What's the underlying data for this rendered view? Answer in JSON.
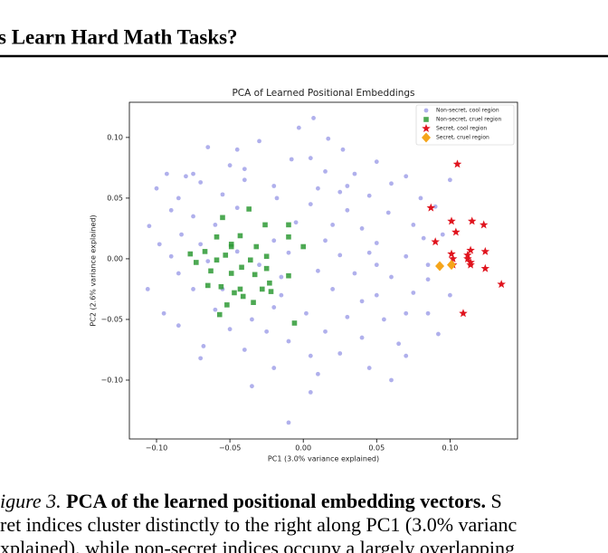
{
  "header": {
    "title": "s Learn Hard Math Tasks?"
  },
  "chart_data": {
    "type": "scatter",
    "title": "PCA of Learned Positional Embeddings",
    "x_label": "PC1 (3.0% variance explained)",
    "y_label": "PC2 (2.6% variance explained)",
    "xlim": [
      -0.1185,
      0.146
    ],
    "ylim": [
      -0.1485,
      0.129
    ],
    "xticks": [
      {
        "value": -0.1,
        "label": "−0.10"
      },
      {
        "value": -0.05,
        "label": "−0.05"
      },
      {
        "value": 0,
        "label": "0.00"
      },
      {
        "value": 0.05,
        "label": "0.05"
      },
      {
        "value": 0.1,
        "label": "0.10"
      }
    ],
    "yticks": [
      {
        "value": -0.1,
        "label": "−0.10"
      },
      {
        "value": -0.05,
        "label": "−0.05"
      },
      {
        "value": 0,
        "label": "0.00"
      },
      {
        "value": 0.05,
        "label": "0.05"
      },
      {
        "value": 0.1,
        "label": "0.10"
      }
    ],
    "legend_position": "upper right",
    "series": [
      {
        "name": "Non-secret, cool region",
        "color": "#7b7be0",
        "marker": "circle",
        "x": [
          0.007,
          -0.003,
          0.017,
          -0.03,
          -0.065,
          -0.045,
          0.027,
          -0.008,
          0.005,
          0.05,
          -0.093,
          -0.08,
          -0.04,
          -0.05,
          0.015,
          0.035,
          0.07,
          -0.1,
          -0.07,
          -0.02,
          0.06,
          0.1,
          -0.085,
          -0.055,
          -0.018,
          0.025,
          0.045,
          0.08,
          -0.09,
          -0.075,
          -0.045,
          0.005,
          0.03,
          0.058,
          0.09,
          -0.105,
          -0.083,
          -0.06,
          -0.005,
          0.02,
          0.04,
          0.075,
          -0.098,
          -0.07,
          -0.02,
          0.015,
          0.05,
          0.082,
          0.095,
          -0.09,
          -0.065,
          -0.01,
          0.025,
          0.045,
          0.07,
          -0.106,
          -0.085,
          -0.03,
          0.01,
          0.035,
          0.06,
          0.085,
          -0.075,
          -0.015,
          0.02,
          0.05,
          0.075,
          0.1,
          -0.095,
          -0.06,
          -0.035,
          0.002,
          0.03,
          0.055,
          0.085,
          -0.085,
          -0.05,
          -0.025,
          -0.01,
          0.015,
          0.04,
          0.065,
          0.092,
          -0.068,
          -0.04,
          0.005,
          0.025,
          0.07,
          -0.07,
          -0.02,
          0.01,
          0.045,
          0.06,
          -0.035,
          0.005,
          -0.01,
          -0.045,
          -0.02,
          -0.015,
          0.03,
          -0.04,
          0.05,
          0.07,
          -0.075,
          0.085,
          0.01,
          -0.055,
          0.04
        ],
        "y": [
          0.116,
          0.108,
          0.099,
          0.097,
          0.092,
          0.09,
          0.09,
          0.082,
          0.083,
          0.08,
          0.07,
          0.068,
          0.074,
          0.077,
          0.072,
          0.07,
          0.068,
          0.058,
          0.063,
          0.06,
          0.062,
          0.065,
          0.05,
          0.053,
          0.05,
          0.055,
          0.052,
          0.05,
          0.04,
          0.035,
          0.042,
          0.045,
          0.04,
          0.038,
          0.043,
          0.027,
          0.02,
          0.028,
          0.03,
          0.028,
          0.025,
          0.028,
          0.012,
          0.012,
          0.015,
          0.015,
          0.013,
          0.017,
          0.02,
          0.002,
          -0.002,
          0.005,
          0.003,
          0.005,
          0.002,
          -0.025,
          -0.012,
          -0.005,
          -0.01,
          -0.012,
          -0.015,
          -0.017,
          -0.025,
          -0.03,
          -0.025,
          -0.03,
          -0.028,
          -0.03,
          -0.045,
          -0.042,
          -0.05,
          -0.045,
          -0.048,
          -0.05,
          -0.045,
          -0.055,
          -0.058,
          -0.06,
          -0.068,
          -0.06,
          -0.065,
          -0.07,
          -0.062,
          -0.072,
          -0.075,
          -0.08,
          -0.078,
          -0.08,
          -0.082,
          -0.09,
          -0.095,
          -0.09,
          -0.1,
          -0.105,
          -0.11,
          -0.135,
          0.006,
          -0.04,
          -0.015,
          0.06,
          0.065,
          -0.005,
          -0.045,
          0.07,
          -0.005,
          0.058,
          -0.025,
          -0.035
        ]
      },
      {
        "name": "Non-secret, cruel region",
        "color": "#2e9a35",
        "marker": "square",
        "x": [
          -0.037,
          -0.055,
          -0.026,
          -0.01,
          -0.043,
          -0.059,
          -0.049,
          -0.032,
          -0.049,
          -0.01,
          0,
          -0.067,
          -0.077,
          -0.053,
          -0.025,
          -0.036,
          -0.059,
          -0.042,
          -0.025,
          -0.063,
          -0.049,
          -0.033,
          -0.01,
          -0.023,
          -0.065,
          -0.056,
          -0.043,
          -0.028,
          -0.047,
          -0.041,
          -0.022,
          -0.034,
          -0.052,
          -0.057,
          -0.006,
          -0.073
        ],
        "y": [
          0.041,
          0.034,
          0.028,
          0.028,
          0.019,
          0.018,
          0.012,
          0.01,
          0.01,
          0.018,
          0.01,
          0.006,
          0.004,
          0.003,
          0.002,
          -0.001,
          -0.001,
          -0.007,
          -0.008,
          -0.01,
          -0.012,
          -0.013,
          -0.014,
          -0.02,
          -0.022,
          -0.023,
          -0.025,
          -0.025,
          -0.028,
          -0.031,
          -0.027,
          -0.036,
          -0.038,
          -0.046,
          -0.053,
          -0.003
        ]
      },
      {
        "name": "Secret, cool region",
        "color": "#e0141e",
        "marker": "star",
        "x": [
          0.105,
          0.087,
          0.101,
          0.115,
          0.123,
          0.104,
          0.09,
          0.114,
          0.124,
          0.101,
          0.112,
          0.112,
          0.114,
          0.102,
          0.114,
          0.102,
          0.124,
          0.135,
          0.109
        ],
        "y": [
          0.078,
          0.042,
          0.031,
          0.031,
          0.028,
          0.022,
          0.014,
          0.007,
          0.006,
          0.004,
          0.003,
          0,
          -0.003,
          0,
          -0.005,
          -0.005,
          -0.008,
          -0.021,
          -0.045
        ]
      },
      {
        "name": "Secret, cruel region",
        "color": "#f5a51a",
        "marker": "diamond",
        "x": [
          0.093,
          0.101
        ],
        "y": [
          -0.006,
          -0.005
        ]
      }
    ]
  },
  "caption": {
    "label": "igure 3.",
    "bold": "PCA of the learned positional embedding vectors.",
    "line1_rest": "S",
    "line2": "ret indices cluster distinctly to the right along PC1 (3.0% varianc",
    "line3": "xplained), while non-secret indices occupy a largely overlapping"
  }
}
